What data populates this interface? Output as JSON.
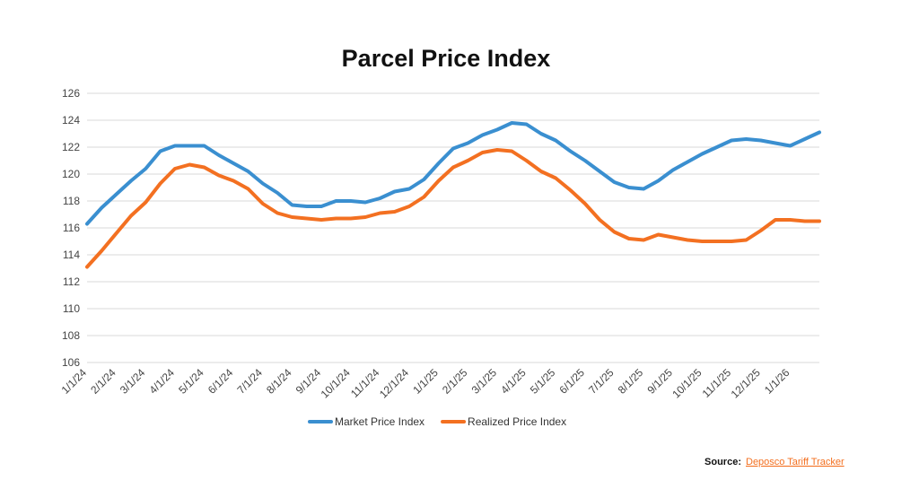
{
  "chart_data": {
    "type": "line",
    "title": "Parcel Price Index",
    "categories": [
      "1/1/24",
      null,
      "2/1/24",
      null,
      "3/1/24",
      null,
      "4/1/24",
      null,
      "5/1/24",
      null,
      "6/1/24",
      null,
      "7/1/24",
      null,
      "8/1/24",
      null,
      "9/1/24",
      null,
      "10/1/24",
      null,
      "11/1/24",
      null,
      "12/1/24",
      null,
      "1/1/25",
      null,
      "2/1/25",
      null,
      "3/1/25",
      null,
      "4/1/25",
      null,
      "5/1/25",
      null,
      "6/1/25",
      null,
      "7/1/25",
      null,
      "8/1/25",
      null,
      "9/1/25",
      null,
      "10/1/25",
      null,
      "11/1/25",
      null,
      "12/1/25",
      null,
      "1/1/26",
      null,
      null
    ],
    "series": [
      {
        "name": "Market Price Index",
        "color": "#3a8fd0",
        "values": [
          116.3,
          117.5,
          118.5,
          119.5,
          120.4,
          121.7,
          122.1,
          122.1,
          122.1,
          121.4,
          120.8,
          120.2,
          119.3,
          118.6,
          117.7,
          117.6,
          117.6,
          118.0,
          118.0,
          117.9,
          118.2,
          118.7,
          118.9,
          119.6,
          120.8,
          121.9,
          122.3,
          122.9,
          123.3,
          123.8,
          123.7,
          123.0,
          122.5,
          121.7,
          121.0,
          120.2,
          119.4,
          119.0,
          118.9,
          119.5,
          120.3,
          120.9,
          121.5,
          122.0,
          122.5,
          122.6,
          122.5,
          122.3,
          122.1,
          122.6,
          123.1
        ]
      },
      {
        "name": "Realized Price Index",
        "color": "#f37021",
        "values": [
          113.1,
          114.3,
          115.6,
          116.9,
          117.9,
          119.3,
          120.4,
          120.7,
          120.5,
          119.9,
          119.5,
          118.9,
          117.8,
          117.1,
          116.8,
          116.7,
          116.6,
          116.7,
          116.7,
          116.8,
          117.1,
          117.2,
          117.6,
          118.3,
          119.5,
          120.5,
          121.0,
          121.6,
          121.8,
          121.7,
          121.0,
          120.2,
          119.7,
          118.8,
          117.8,
          116.6,
          115.7,
          115.2,
          115.1,
          115.5,
          115.3,
          115.1,
          115.0,
          115.0,
          115.0,
          115.1,
          115.8,
          116.6,
          116.6,
          116.5,
          116.5
        ]
      }
    ],
    "ylim": [
      106,
      126
    ],
    "yticks": [
      106,
      108,
      110,
      112,
      114,
      116,
      118,
      120,
      122,
      124,
      126
    ],
    "grid": true,
    "legend": "bottom",
    "source": {
      "label": "Source:",
      "text": "Deposco Tariff Tracker"
    }
  }
}
